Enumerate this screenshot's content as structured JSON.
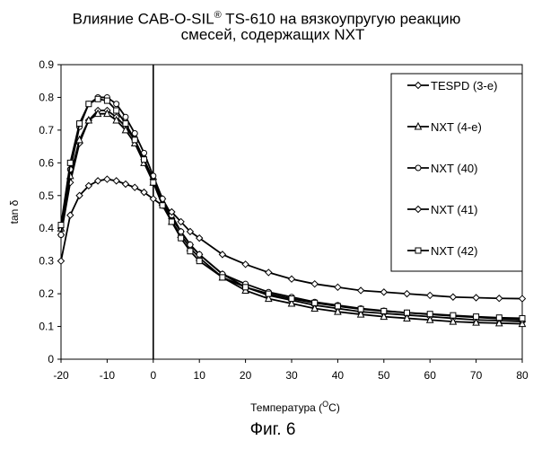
{
  "title": {
    "prefix": "Влияние CAB-O-SIL",
    "superscript": "®",
    "suffix": " TS-610 на вязкоупругую реакцию",
    "line2": "смесей, содержащих NXT"
  },
  "caption": "Фиг. 6",
  "chart_data": {
    "type": "line",
    "xlabel_prefix": "Температура (",
    "xlabel_sup": "O",
    "xlabel_suffix": "C)",
    "ylabel": "tan δ",
    "xlim": [
      -20,
      80
    ],
    "ylim": [
      0,
      0.9
    ],
    "x_ticks": [
      -20,
      -10,
      0,
      10,
      20,
      30,
      40,
      50,
      60,
      70,
      80
    ],
    "y_ticks": [
      "0",
      "0.1",
      "0.2",
      "0.3",
      "0.4",
      "0.5",
      "0.6",
      "0.7",
      "0.8",
      "0.9"
    ],
    "vertical_line_x": 0,
    "legend_position": "right",
    "grid": false,
    "x": [
      -20,
      -18,
      -16,
      -14,
      -12,
      -10,
      -8,
      -6,
      -4,
      -2,
      0,
      2,
      4,
      6,
      8,
      10,
      15,
      20,
      25,
      30,
      35,
      40,
      45,
      50,
      55,
      60,
      65,
      70,
      75,
      80
    ],
    "series": [
      {
        "name": "TESPD (3-е)",
        "marker": "diamond",
        "values": [
          0.38,
          0.54,
          0.66,
          0.73,
          0.76,
          0.76,
          0.74,
          0.71,
          0.67,
          0.61,
          0.55,
          0.49,
          0.43,
          0.39,
          0.35,
          0.32,
          0.26,
          0.22,
          0.195,
          0.18,
          0.165,
          0.155,
          0.145,
          0.14,
          0.135,
          0.13,
          0.125,
          0.12,
          0.118,
          0.115
        ]
      },
      {
        "name": "NXT (4-е)",
        "marker": "triangle",
        "values": [
          0.4,
          0.56,
          0.67,
          0.73,
          0.75,
          0.75,
          0.73,
          0.7,
          0.66,
          0.6,
          0.54,
          0.48,
          0.42,
          0.38,
          0.34,
          0.31,
          0.25,
          0.21,
          0.185,
          0.17,
          0.155,
          0.145,
          0.137,
          0.13,
          0.125,
          0.12,
          0.115,
          0.112,
          0.11,
          0.108
        ]
      },
      {
        "name": "NXT (40)",
        "marker": "circle",
        "values": [
          0.38,
          0.58,
          0.71,
          0.78,
          0.8,
          0.8,
          0.78,
          0.74,
          0.69,
          0.63,
          0.56,
          0.49,
          0.44,
          0.39,
          0.35,
          0.32,
          0.26,
          0.23,
          0.205,
          0.19,
          0.175,
          0.165,
          0.155,
          0.148,
          0.142,
          0.137,
          0.132,
          0.128,
          0.124,
          0.12
        ]
      },
      {
        "name": "NXT (41)",
        "marker": "diamond",
        "values": [
          0.3,
          0.44,
          0.5,
          0.53,
          0.545,
          0.55,
          0.545,
          0.535,
          0.525,
          0.51,
          0.49,
          0.47,
          0.45,
          0.42,
          0.39,
          0.37,
          0.32,
          0.29,
          0.265,
          0.245,
          0.23,
          0.22,
          0.21,
          0.205,
          0.2,
          0.195,
          0.19,
          0.188,
          0.186,
          0.185
        ]
      },
      {
        "name": "NXT (42)",
        "marker": "square",
        "values": [
          0.41,
          0.6,
          0.72,
          0.78,
          0.795,
          0.79,
          0.76,
          0.72,
          0.67,
          0.61,
          0.54,
          0.47,
          0.42,
          0.37,
          0.33,
          0.3,
          0.25,
          0.22,
          0.2,
          0.185,
          0.172,
          0.162,
          0.153,
          0.147,
          0.142,
          0.138,
          0.134,
          0.13,
          0.127,
          0.125
        ]
      }
    ]
  }
}
